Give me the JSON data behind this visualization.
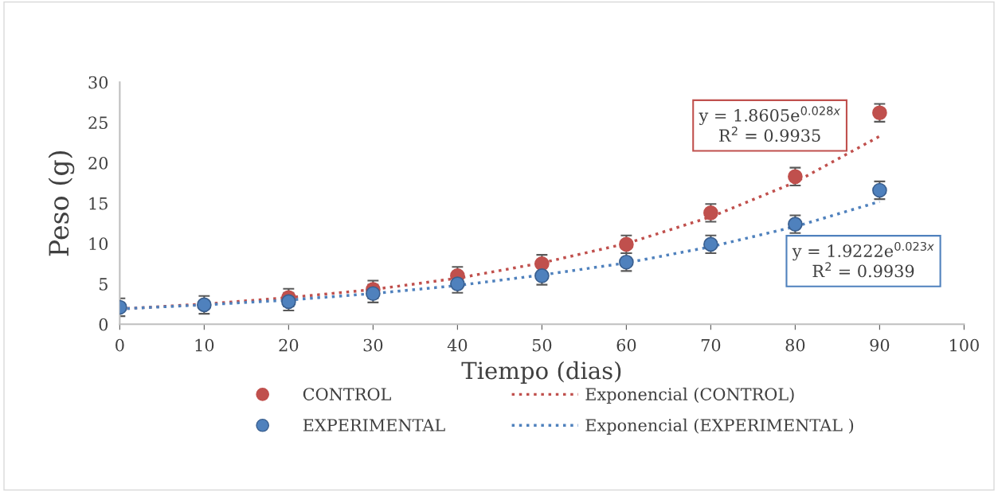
{
  "chart_data": {
    "type": "scatter",
    "xlabel": "Tiempo (dias)",
    "ylabel": "Peso (g)",
    "xlim": [
      0,
      100
    ],
    "xticks": [
      0,
      10,
      20,
      30,
      40,
      50,
      60,
      70,
      80,
      90,
      100
    ],
    "ylim": [
      0,
      30
    ],
    "yticks": [
      0,
      5,
      10,
      15,
      20,
      25,
      30
    ],
    "grid": false,
    "legend": "bottom",
    "marker": "circle",
    "series": [
      {
        "name": "CONTROL",
        "color": "#c0504d",
        "x": [
          20,
          30,
          40,
          50,
          60,
          70,
          80,
          90
        ],
        "values": [
          3.3,
          4.3,
          6.0,
          7.5,
          9.9,
          13.8,
          18.3,
          26.2
        ],
        "errors": [
          1.1,
          1.1,
          1.1,
          1.1,
          1.1,
          1.1,
          1.1,
          1.1
        ]
      },
      {
        "name": "EXPERIMENTAL",
        "color": "#4f81bd",
        "x": [
          0,
          10,
          20,
          30,
          40,
          50,
          60,
          70,
          80,
          90
        ],
        "values": [
          2.1,
          2.4,
          2.8,
          3.8,
          5.0,
          6.0,
          7.7,
          9.9,
          12.4,
          16.6
        ],
        "errors": [
          1.1,
          1.1,
          1.1,
          1.1,
          1.1,
          1.1,
          1.1,
          1.1,
          1.1,
          1.1
        ]
      },
      {
        "name": "Exponencial (CONTROL)",
        "type": "line",
        "line_style": "dotted",
        "marker": "none",
        "color": "#c0504d",
        "x": [
          0,
          10,
          20,
          30,
          40,
          50,
          60,
          70,
          80,
          90
        ],
        "values": [
          1.9,
          2.5,
          3.3,
          4.3,
          5.7,
          7.6,
          10.0,
          13.3,
          17.6,
          23.3
        ]
      },
      {
        "name": "Exponencial (EXPERIMENTAL )",
        "type": "line",
        "line_style": "dotted",
        "marker": "none",
        "color": "#4f81bd",
        "x": [
          0,
          10,
          20,
          30,
          40,
          50,
          60,
          70,
          80,
          90
        ],
        "values": [
          1.9,
          2.4,
          3.0,
          3.8,
          4.8,
          6.1,
          7.6,
          9.6,
          12.1,
          15.2
        ]
      }
    ],
    "annotations": [
      "y = 1.8605e$^{0.028x}$\nR$^{2}$ = 0.9935",
      "y = 1.9222e$^{0.023x}$\nR$^{2}$ = 0.9939"
    ]
  }
}
